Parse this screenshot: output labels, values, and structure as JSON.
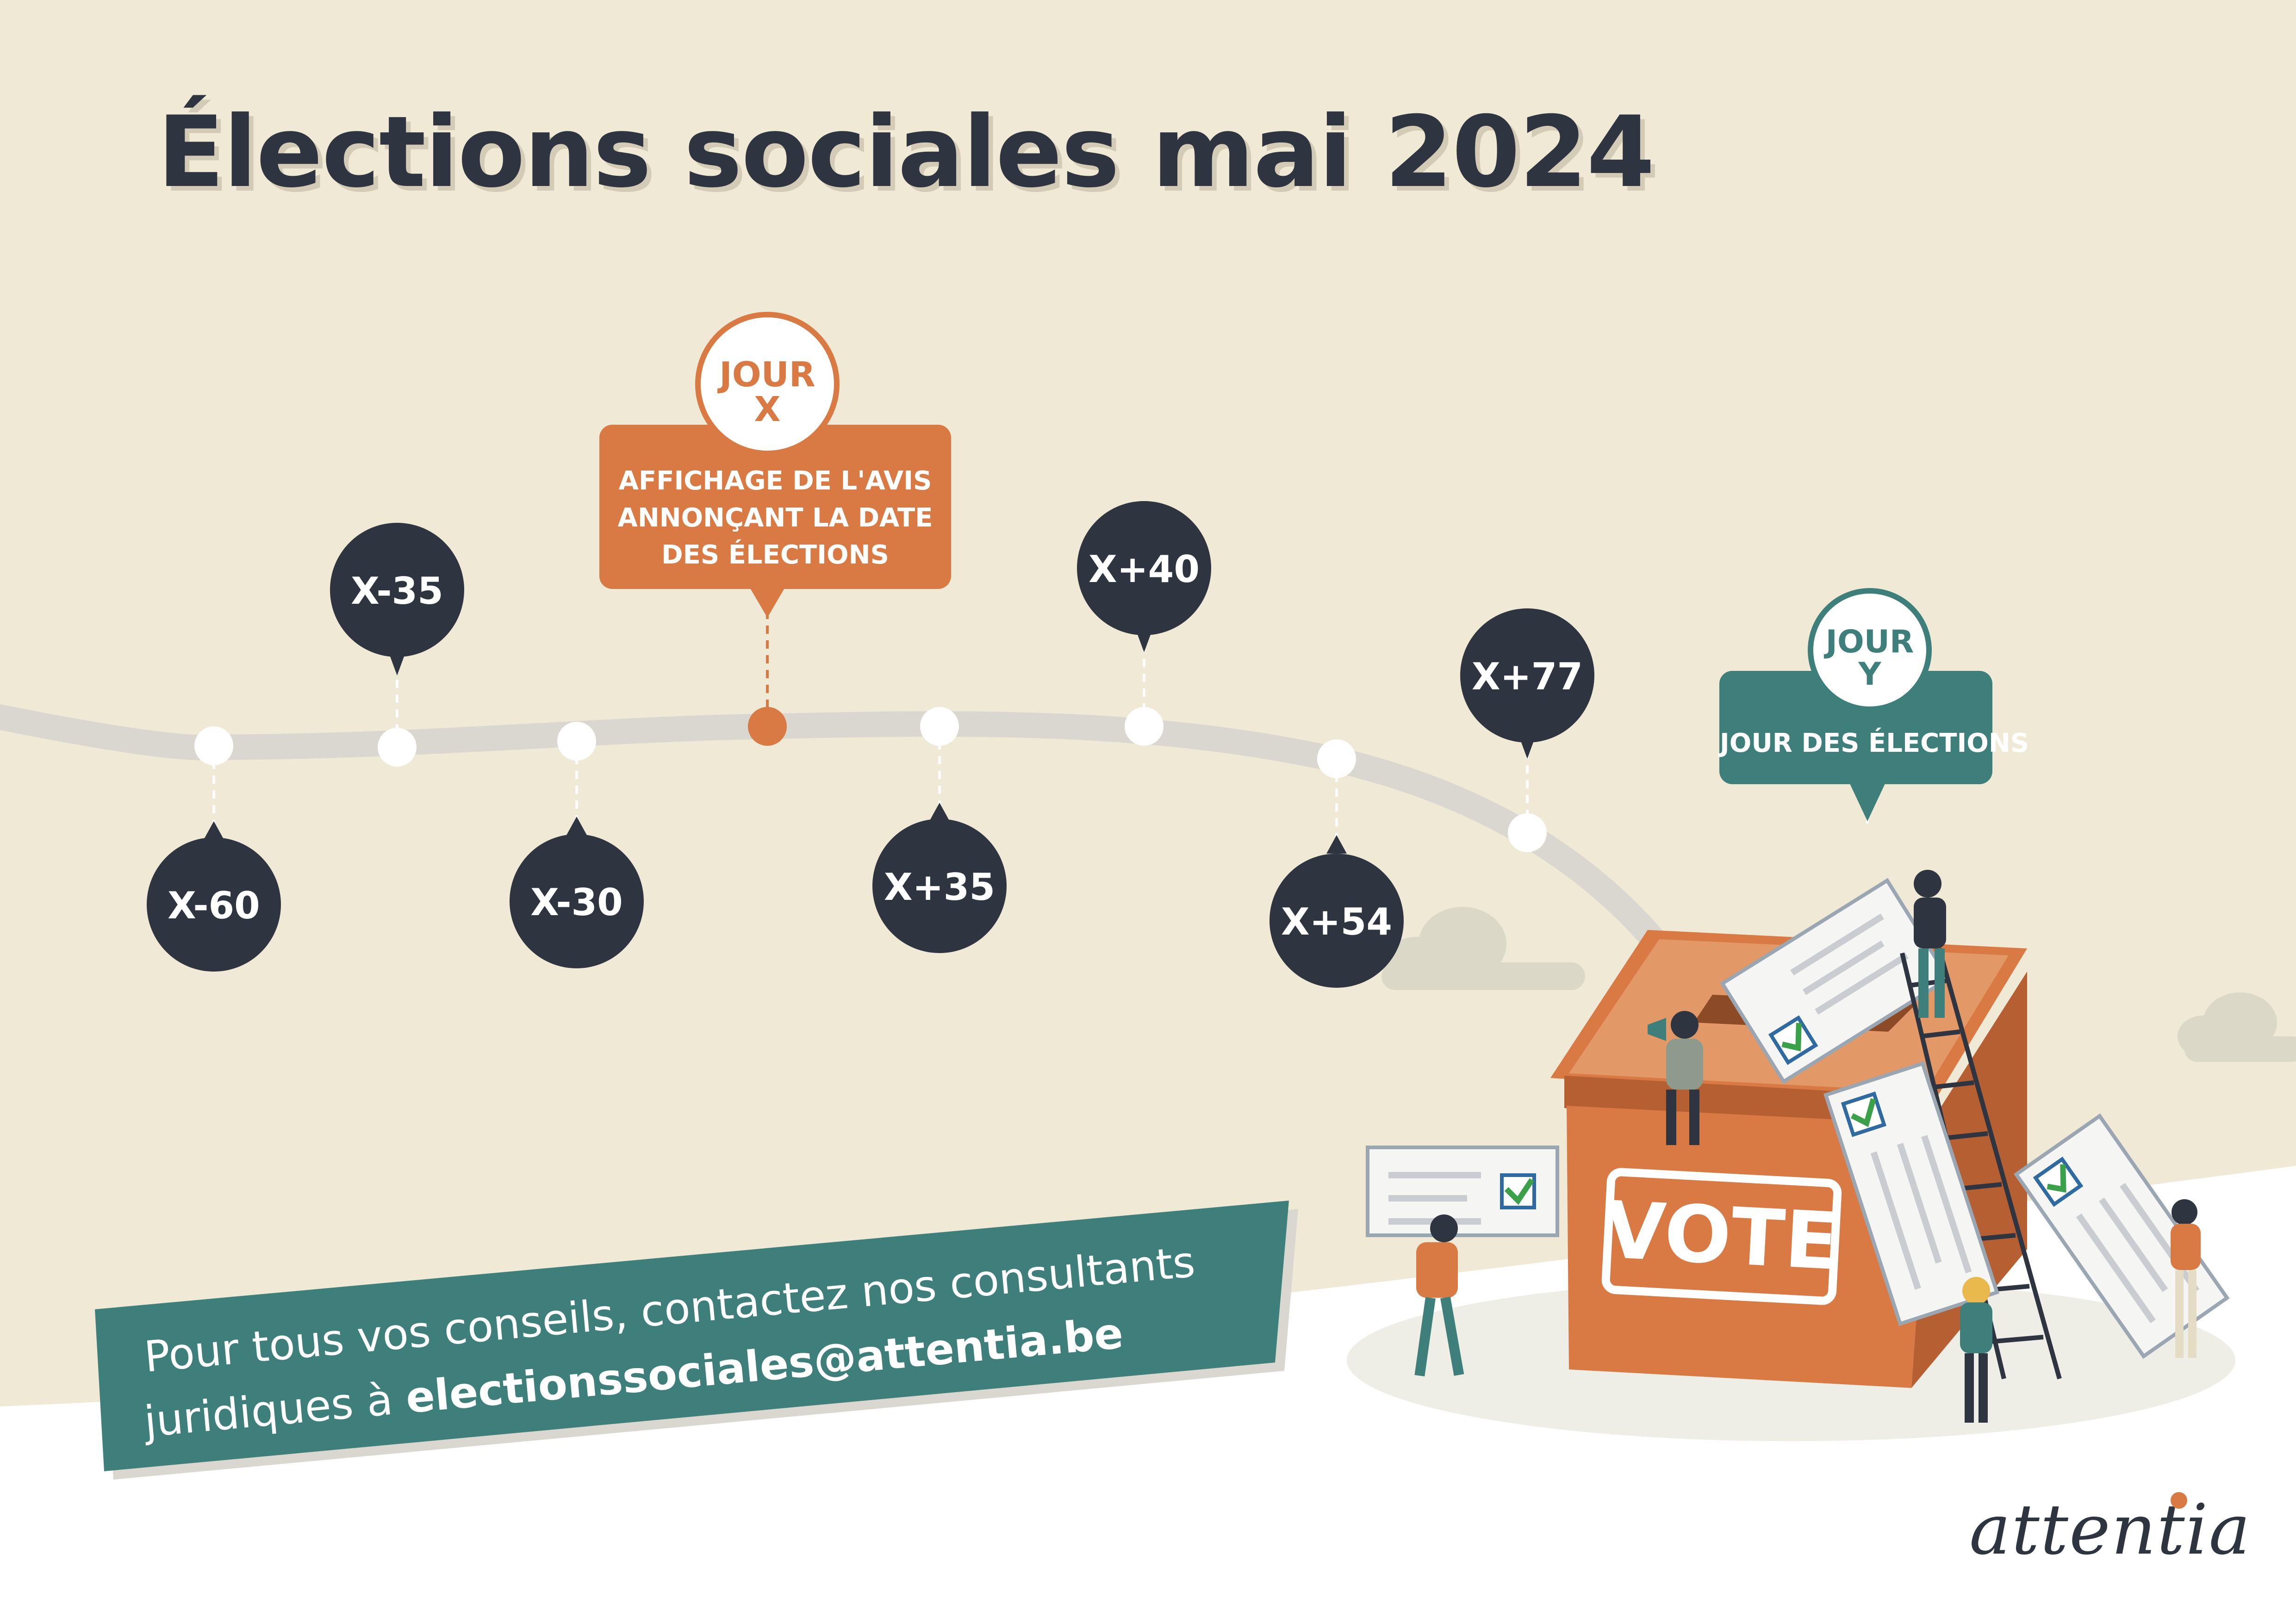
{
  "title": "Élections sociales mai 2024",
  "timeline": {
    "markers": [
      "X-60",
      "X-35",
      "X-30",
      "X+35",
      "X+40",
      "X+54",
      "X+77"
    ],
    "jour_x": {
      "badge_line1": "JOUR",
      "badge_line2": "X",
      "caption_line1": "AFFICHAGE DE L'AVIS",
      "caption_line2": "ANNONÇANT LA DATE",
      "caption_line3": "DES ÉLECTIONS"
    },
    "jour_y": {
      "badge_line1": "JOUR",
      "badge_line2": "Y",
      "caption": "JOUR DES ÉLECTIONS"
    }
  },
  "ballot_box_label": "VOTE",
  "banner": {
    "line1": "Pour tous vos conseils, contactez nos consultants",
    "line2_prefix": "juridiques à ",
    "email": "electionssociales@attentia.be"
  },
  "logo": "attentia",
  "colors": {
    "background": "#efe9d6",
    "dark": "#2f3540",
    "orange": "#d97a45",
    "teal": "#3f7f7b",
    "track": "#d9d7cf"
  }
}
